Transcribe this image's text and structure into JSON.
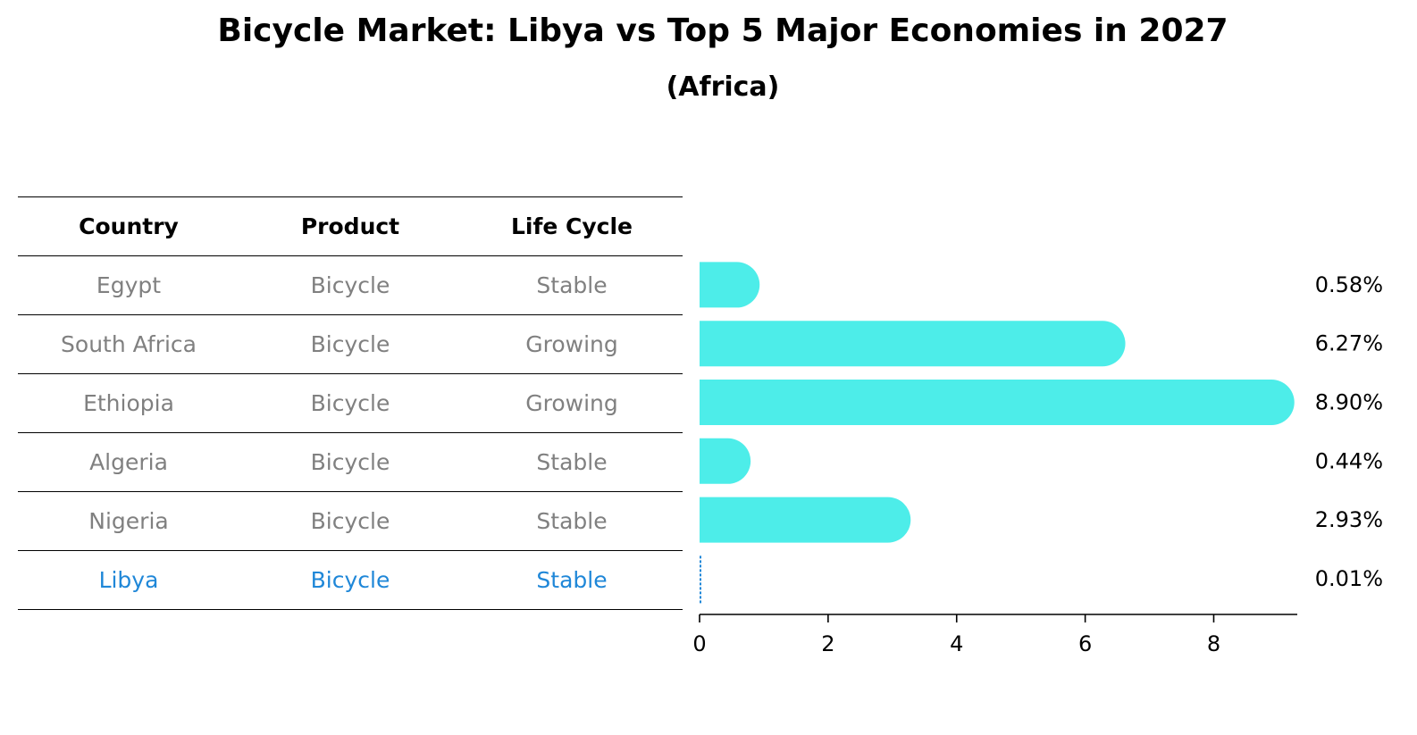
{
  "chart_data": {
    "type": "bar",
    "orientation": "horizontal",
    "title": "Bicycle Market: Libya vs Top 5 Major Economies in 2027",
    "subtitle": "(Africa)",
    "table_headers": [
      "Country",
      "Product",
      "Life Cycle"
    ],
    "rows": [
      {
        "country": "Egypt",
        "product": "Bicycle",
        "life_cycle": "Stable",
        "value": 0.58,
        "label": "0.58%"
      },
      {
        "country": "South Africa",
        "product": "Bicycle",
        "life_cycle": "Growing",
        "value": 6.27,
        "label": "6.27%"
      },
      {
        "country": "Ethiopia",
        "product": "Bicycle",
        "life_cycle": "Growing",
        "value": 8.9,
        "label": "8.90%"
      },
      {
        "country": "Algeria",
        "product": "Bicycle",
        "life_cycle": "Stable",
        "value": 0.44,
        "label": "0.44%"
      },
      {
        "country": "Nigeria",
        "product": "Bicycle",
        "life_cycle": "Stable",
        "value": 2.93,
        "label": "2.93%"
      },
      {
        "country": "Libya",
        "product": "Bicycle",
        "life_cycle": "Stable",
        "value": 0.01,
        "label": "0.01%",
        "highlight": true
      }
    ],
    "xlim": [
      0,
      9.3
    ],
    "xticks": [
      0,
      2,
      4,
      6,
      8
    ],
    "colors": {
      "bar": "#4dede9",
      "highlight": "#1f87d8",
      "muted_text": "#808080"
    }
  }
}
